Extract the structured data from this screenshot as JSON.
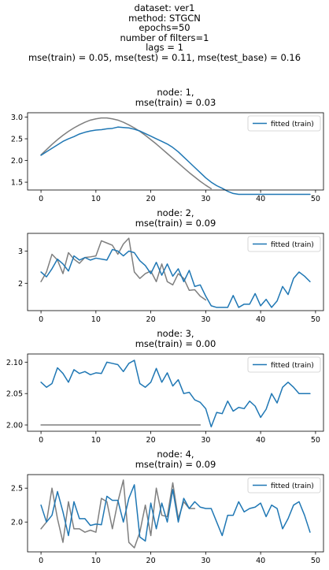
{
  "suptitle": [
    "dataset: ver1",
    "method: STGCN",
    "epochs=50",
    "number of filters=1",
    "lags = 1",
    "mse(train) = 0.05, mse(test) = 0.11, mse(test_base) = 0.16"
  ],
  "colors": {
    "fitted": "#1f77b4",
    "observed": "#7f7f7f"
  },
  "chart_data": [
    {
      "type": "line",
      "title_lines": [
        "node: 1,",
        "mse(train) = 0.03"
      ],
      "xlim": [
        -2.45,
        51.45
      ],
      "ylim": [
        1.32,
        3.1
      ],
      "xticks": [
        0,
        10,
        20,
        30,
        40,
        50
      ],
      "yticks": [
        1.5,
        2.0,
        2.5,
        3.0
      ],
      "ytick_labels": [
        "1.5",
        "2.0",
        "2.5",
        "3.0"
      ],
      "legend": {
        "position": "upper-right",
        "label": "fitted (train)"
      },
      "series": [
        {
          "role": "observed",
          "x_start": 0,
          "values": [
            2.13,
            2.25,
            2.37,
            2.48,
            2.58,
            2.67,
            2.75,
            2.82,
            2.88,
            2.93,
            2.96,
            2.98,
            2.98,
            2.96,
            2.93,
            2.88,
            2.82,
            2.75,
            2.67,
            2.58,
            2.48,
            2.38,
            2.27,
            2.16,
            2.05,
            1.94,
            1.83,
            1.72,
            1.62,
            1.52,
            1.43,
            1.35
          ]
        },
        {
          "role": "fitted",
          "label": "fitted (train)",
          "x_start": 0,
          "values": [
            2.12,
            2.2,
            2.28,
            2.36,
            2.44,
            2.5,
            2.55,
            2.61,
            2.65,
            2.68,
            2.7,
            2.71,
            2.73,
            2.74,
            2.77,
            2.76,
            2.75,
            2.72,
            2.68,
            2.62,
            2.56,
            2.5,
            2.44,
            2.38,
            2.3,
            2.2,
            2.08,
            1.96,
            1.84,
            1.72,
            1.6,
            1.5,
            1.42,
            1.36,
            1.29,
            1.24,
            1.22,
            1.22,
            1.22,
            1.22,
            1.22,
            1.22,
            1.22,
            1.22,
            1.22,
            1.22,
            1.22,
            1.22,
            1.22,
            1.22
          ]
        }
      ]
    },
    {
      "type": "line",
      "title_lines": [
        "node: 2,",
        "mse(train) = 0.09"
      ],
      "xlim": [
        -2.45,
        51.45
      ],
      "ylim": [
        1.15,
        3.55
      ],
      "xticks": [
        0,
        10,
        20,
        30,
        40,
        50
      ],
      "yticks": [
        2,
        3
      ],
      "ytick_labels": [
        "2",
        "3"
      ],
      "legend": {
        "position": "upper-right",
        "label": "fitted (train)"
      },
      "series": [
        {
          "role": "observed",
          "x_start": 0,
          "values": [
            2.05,
            2.35,
            2.9,
            2.72,
            2.3,
            2.95,
            2.75,
            2.62,
            2.8,
            2.82,
            2.85,
            3.32,
            3.25,
            3.18,
            2.9,
            3.22,
            3.4,
            2.35,
            2.15,
            2.3,
            2.38,
            2.05,
            2.6,
            2.05,
            1.95,
            2.3,
            2.15,
            1.78,
            1.8,
            1.6,
            1.48
          ]
        },
        {
          "role": "fitted",
          "label": "fitted (train)",
          "x_start": 0,
          "values": [
            2.35,
            2.2,
            2.45,
            2.75,
            2.6,
            2.38,
            2.85,
            2.72,
            2.8,
            2.72,
            2.78,
            2.75,
            2.72,
            3.05,
            3.0,
            2.85,
            3.0,
            2.95,
            2.7,
            2.55,
            2.3,
            2.65,
            2.25,
            2.6,
            2.22,
            2.45,
            2.05,
            2.4,
            1.9,
            1.95,
            1.6,
            1.3,
            1.25,
            1.25,
            1.25,
            1.62,
            1.25,
            1.35,
            1.35,
            1.68,
            1.3,
            1.5,
            1.25,
            1.45,
            1.9,
            1.65,
            2.15,
            2.35,
            2.22,
            2.05
          ]
        }
      ]
    },
    {
      "type": "line",
      "title_lines": [
        "node: 3,",
        "mse(train) = 0.00"
      ],
      "xlim": [
        -2.45,
        51.45
      ],
      "ylim": [
        1.99,
        2.113
      ],
      "xticks": [
        0,
        10,
        20,
        30,
        40,
        50
      ],
      "yticks": [
        2.0,
        2.05,
        2.1
      ],
      "ytick_labels": [
        "2.00",
        "2.05",
        "2.10"
      ],
      "legend": {
        "position": "upper-right",
        "label": "fitted (train)"
      },
      "series": [
        {
          "role": "observed",
          "x_start": 0,
          "values": [
            2.0,
            2.0,
            2.0,
            2.0,
            2.0,
            2.0,
            2.0,
            2.0,
            2.0,
            2.0,
            2.0,
            2.0,
            2.0,
            2.0,
            2.0,
            2.0,
            2.0,
            2.0,
            2.0,
            2.0,
            2.0,
            2.0,
            2.0,
            2.0,
            2.0,
            2.0,
            2.0,
            2.0,
            2.0,
            2.0
          ]
        },
        {
          "role": "fitted",
          "label": "fitted (train)",
          "x_start": 0,
          "values": [
            2.068,
            2.06,
            2.066,
            2.091,
            2.082,
            2.068,
            2.088,
            2.082,
            2.085,
            2.08,
            2.083,
            2.082,
            2.1,
            2.098,
            2.096,
            2.085,
            2.098,
            2.103,
            2.066,
            2.06,
            2.068,
            2.09,
            2.068,
            2.083,
            2.062,
            2.072,
            2.05,
            2.052,
            2.04,
            2.036,
            2.026,
            1.997,
            2.02,
            2.018,
            2.038,
            2.022,
            2.028,
            2.026,
            2.038,
            2.03,
            2.012,
            2.025,
            2.05,
            2.035,
            2.06,
            2.068,
            2.06,
            2.05,
            2.05,
            2.05
          ]
        }
      ]
    },
    {
      "type": "line",
      "title_lines": [
        "node: 4,",
        "mse(train) = 0.09"
      ],
      "xlim": [
        -2.45,
        51.45
      ],
      "ylim": [
        1.56,
        2.7
      ],
      "xticks": [
        0,
        10,
        20,
        30,
        40,
        50
      ],
      "yticks": [
        2.0,
        2.5
      ],
      "ytick_labels": [
        "2.0",
        "2.5"
      ],
      "legend": {
        "position": "upper-right",
        "label": "fitted (train)"
      },
      "series": [
        {
          "role": "observed",
          "x_start": 0,
          "values": [
            1.9,
            2.0,
            2.5,
            2.05,
            1.7,
            2.3,
            1.9,
            1.9,
            1.85,
            1.88,
            1.85,
            2.35,
            2.3,
            1.9,
            2.3,
            2.62,
            1.7,
            1.62,
            1.85,
            2.25,
            1.8,
            2.5,
            2.1,
            2.08,
            2.58,
            2.05,
            2.3,
            2.2,
            2.2
          ]
        },
        {
          "role": "fitted",
          "label": "fitted (train)",
          "x_start": 0,
          "values": [
            2.25,
            2.0,
            2.1,
            2.45,
            2.15,
            1.8,
            2.3,
            2.05,
            2.05,
            1.95,
            1.97,
            1.96,
            2.38,
            2.32,
            2.32,
            2.0,
            2.35,
            2.55,
            1.78,
            1.72,
            2.28,
            1.9,
            2.28,
            2.0,
            2.48,
            2.0,
            2.35,
            2.2,
            2.3,
            2.22,
            2.2,
            2.2,
            2.0,
            1.8,
            2.1,
            2.1,
            2.3,
            2.15,
            2.2,
            2.22,
            2.28,
            2.08,
            2.25,
            2.2,
            1.9,
            2.05,
            2.25,
            2.3,
            2.1,
            1.85
          ]
        }
      ]
    }
  ]
}
